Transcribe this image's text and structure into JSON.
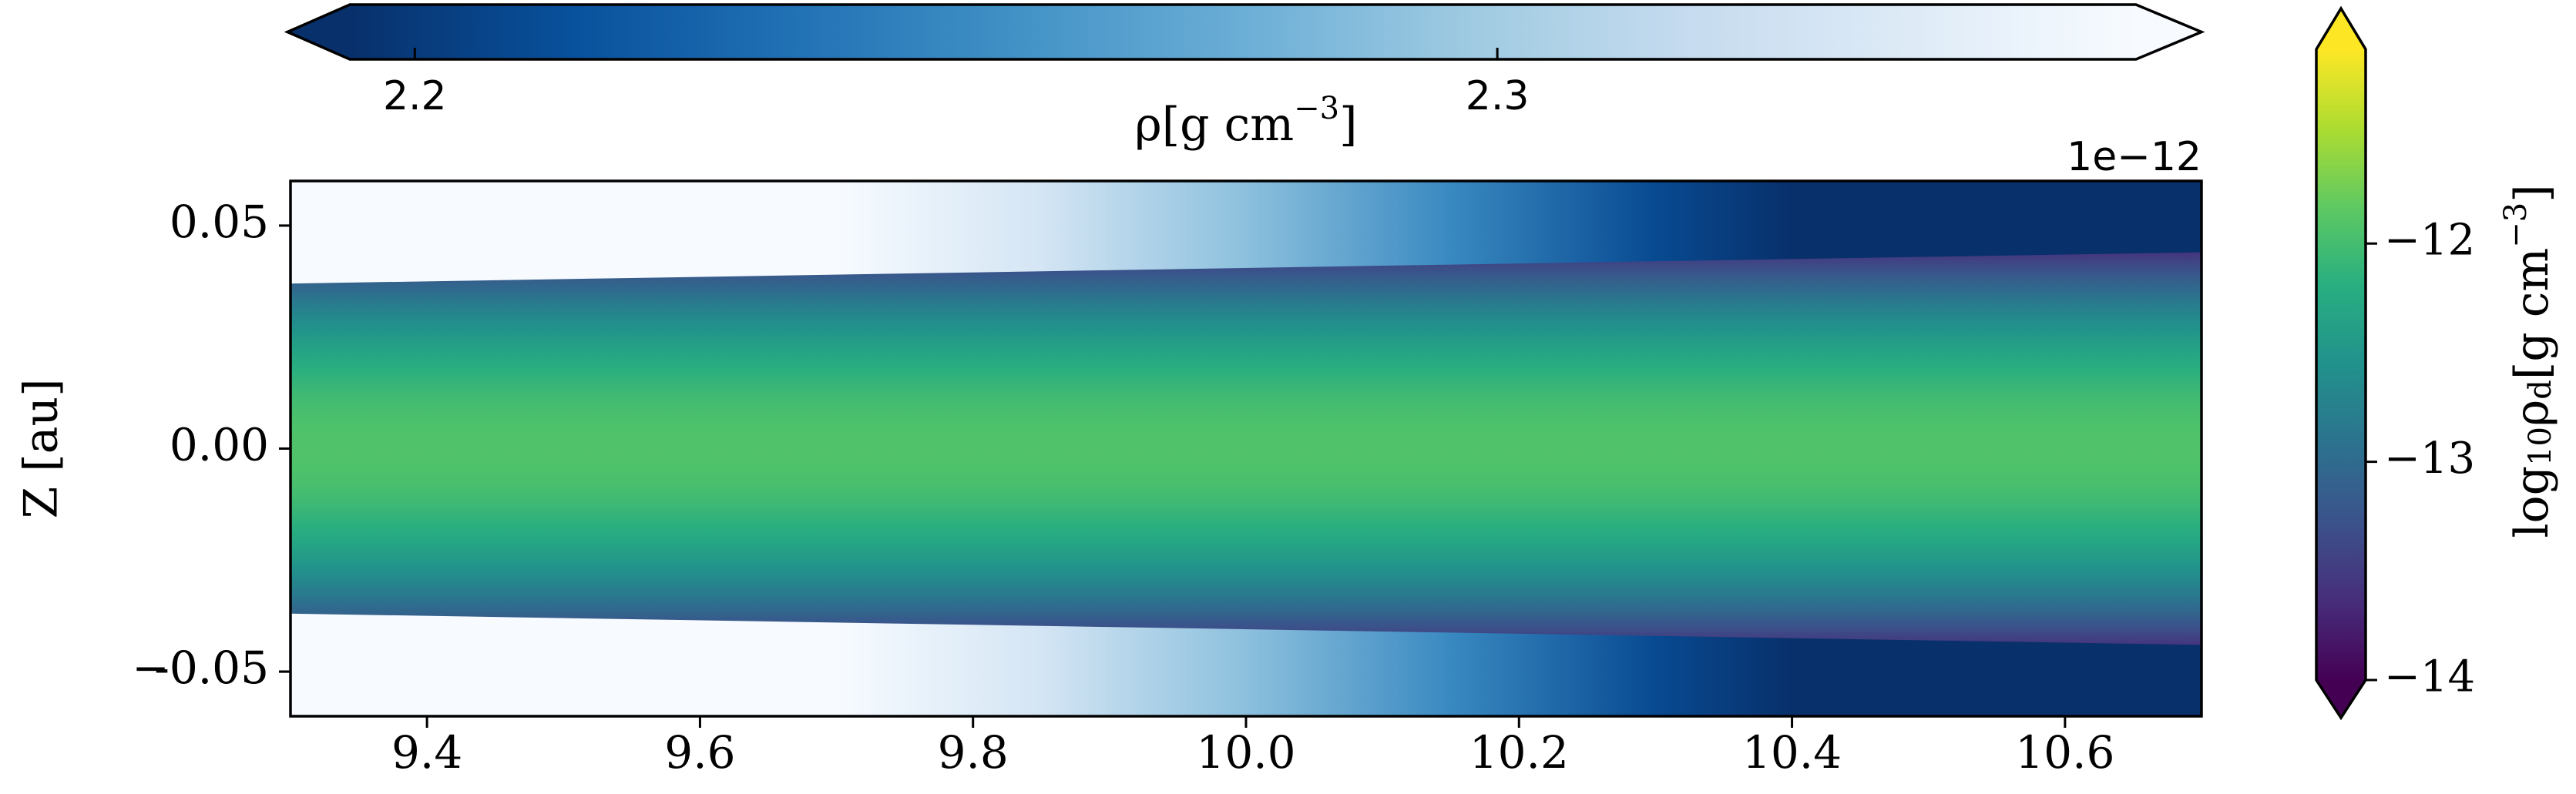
{
  "chart_data": {
    "type": "heatmap",
    "xlim": [
      9.3,
      10.7
    ],
    "xticks": [
      9.4,
      9.6,
      9.8,
      {
        "value": 10.0,
        "label": "10.0"
      },
      10.2,
      10.4,
      10.6
    ],
    "ylim": [
      -0.06,
      0.06
    ],
    "yticks": [
      -0.05,
      {
        "value": -0.05,
        "label": "−0.05"
      },
      {
        "value": 0,
        "label": "0.00"
      },
      0.05
    ],
    "ylabel": "Z [au]",
    "gas": {
      "cmap": "Blues_r",
      "x": [
        9.3,
        9.7,
        9.85,
        10.0,
        10.15,
        10.3,
        10.4,
        10.7
      ],
      "values": [
        2.359,
        2.359,
        2.33,
        2.29,
        2.25,
        2.21,
        2.194,
        2.194
      ],
      "colorbar": {
        "clim": [
          2.194,
          2.359
        ],
        "ticks": [
          2.2,
          2.3
        ],
        "multiplier": "1e−12",
        "label": [
          {
            "text": "ρ"
          },
          {
            "text": "[g cm"
          },
          {
            "text": "−3",
            "script": "sup"
          },
          {
            "text": "]"
          }
        ]
      }
    },
    "dust": {
      "cmap": "viridis",
      "x": [
        9.3,
        10.7
      ],
      "half_thickness": [
        0.037,
        0.044
      ],
      "midplane_log_density": -11.92,
      "edge_log_density": -13.57,
      "colorbar": {
        "clim": [
          -14,
          -11.11
        ],
        "ticks": [
          {
            "value": -12,
            "label": "−12"
          },
          {
            "value": -13,
            "label": "−13"
          },
          {
            "value": -14,
            "label": "−14"
          }
        ],
        "label": [
          {
            "text": "log"
          },
          {
            "text": "10",
            "script": "sub"
          },
          {
            "text": "ρ"
          },
          {
            "text": "d",
            "script": "sub"
          },
          {
            "text": "[g cm"
          },
          {
            "text": "−3",
            "script": "sup"
          },
          {
            "text": "]"
          }
        ]
      }
    }
  }
}
